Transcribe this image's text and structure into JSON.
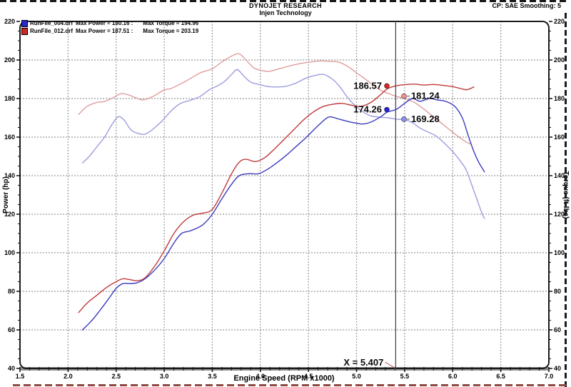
{
  "header": {
    "title": "DYNOJET RESEARCH",
    "subtitle": "Injen Technology",
    "right": "CP: SAE  Smoothing: 5"
  },
  "legend": {
    "items": [
      {
        "file": "RunFile_004.drf",
        "power": "Max Power = 180.16 :",
        "torque": "Max Torque = 194.96",
        "color": "#2828c8"
      },
      {
        "file": "RunFile_012.drf",
        "power": "Max Power = 187.51 :",
        "torque": "Max Torque = 203.19",
        "color": "#c82828"
      }
    ]
  },
  "chart_data": {
    "type": "line",
    "xlabel": "Engine Speed (RPM x1000)",
    "ylabel_left": "Power (hp)",
    "ylabel_right": "Torque (ft-lbs)",
    "xlim": [
      1.5,
      7.0
    ],
    "ylim": [
      40,
      220
    ],
    "x_ticks": [
      "1.5",
      "2.0",
      "2.5",
      "3.0",
      "3.5",
      "4.0",
      "4.5",
      "5.0",
      "5.5",
      "6.0",
      "6.5",
      "7.0"
    ],
    "y_ticks": [
      "220",
      "200",
      "180",
      "160",
      "140",
      "120",
      "100",
      "80",
      "60",
      "40"
    ],
    "x_minor_step": 0.1,
    "y_minor_step": 5,
    "grid": "dashed",
    "cursor": {
      "rpm": 5.407,
      "label": "X = 5.407"
    },
    "series": [
      {
        "name": "RunFile_004 Torque",
        "unit": "ft-lbs",
        "max": 194.96,
        "color": "#9c9ce0",
        "points": [
          [
            2.15,
            146.6
          ],
          [
            2.22,
            150
          ],
          [
            2.3,
            155
          ],
          [
            2.38,
            160
          ],
          [
            2.45,
            166
          ],
          [
            2.52,
            170.5
          ],
          [
            2.58,
            169
          ],
          [
            2.65,
            164
          ],
          [
            2.72,
            162
          ],
          [
            2.8,
            161.5
          ],
          [
            2.88,
            164
          ],
          [
            2.97,
            168
          ],
          [
            3.07,
            173.5
          ],
          [
            3.16,
            177.2
          ],
          [
            3.27,
            179.1
          ],
          [
            3.37,
            181
          ],
          [
            3.47,
            184.6
          ],
          [
            3.55,
            186.5
          ],
          [
            3.63,
            189
          ],
          [
            3.7,
            192.5
          ],
          [
            3.76,
            195
          ],
          [
            3.83,
            191.5
          ],
          [
            3.9,
            188.5
          ],
          [
            3.97,
            187.5
          ],
          [
            4.07,
            186.3
          ],
          [
            4.17,
            186
          ],
          [
            4.27,
            186.4
          ],
          [
            4.37,
            188
          ],
          [
            4.47,
            190.5
          ],
          [
            4.57,
            192
          ],
          [
            4.66,
            192.5
          ],
          [
            4.75,
            190
          ],
          [
            4.82,
            186.5
          ],
          [
            4.9,
            181
          ],
          [
            4.98,
            176.5
          ],
          [
            5.07,
            173
          ],
          [
            5.15,
            171
          ],
          [
            5.25,
            170.3
          ],
          [
            5.33,
            170
          ],
          [
            5.41,
            169.3
          ],
          [
            5.5,
            169
          ],
          [
            5.58,
            167.5
          ],
          [
            5.66,
            164.7
          ],
          [
            5.75,
            162.5
          ],
          [
            5.83,
            160.5
          ],
          [
            5.92,
            156.5
          ],
          [
            6.0,
            152.5
          ],
          [
            6.08,
            147.5
          ],
          [
            6.14,
            143
          ],
          [
            6.2,
            135
          ],
          [
            6.25,
            128
          ],
          [
            6.3,
            121
          ],
          [
            6.33,
            117.8
          ]
        ]
      },
      {
        "name": "RunFile_012 Torque",
        "unit": "ft-lbs",
        "max": 203.19,
        "color": "#e09c9c",
        "points": [
          [
            2.11,
            171.8
          ],
          [
            2.2,
            176
          ],
          [
            2.3,
            178
          ],
          [
            2.38,
            178.5
          ],
          [
            2.45,
            180
          ],
          [
            2.55,
            182.5
          ],
          [
            2.62,
            182
          ],
          [
            2.7,
            180.5
          ],
          [
            2.78,
            179.3
          ],
          [
            2.88,
            181
          ],
          [
            3.0,
            184.5
          ],
          [
            3.07,
            185.2
          ],
          [
            3.22,
            188.9
          ],
          [
            3.37,
            193.2
          ],
          [
            3.5,
            195.5
          ],
          [
            3.6,
            199
          ],
          [
            3.7,
            202
          ],
          [
            3.78,
            203.2
          ],
          [
            3.85,
            200
          ],
          [
            3.93,
            196
          ],
          [
            4.0,
            194.7
          ],
          [
            4.09,
            194.1
          ],
          [
            4.2,
            195.5
          ],
          [
            4.35,
            197.5
          ],
          [
            4.5,
            198.8
          ],
          [
            4.62,
            199.5
          ],
          [
            4.72,
            199.3
          ],
          [
            4.82,
            198.8
          ],
          [
            4.92,
            196.3
          ],
          [
            5.0,
            193.3
          ],
          [
            5.08,
            190.5
          ],
          [
            5.16,
            187.5
          ],
          [
            5.24,
            184.6
          ],
          [
            5.32,
            182.8
          ],
          [
            5.41,
            181.2
          ],
          [
            5.5,
            180
          ],
          [
            5.6,
            178
          ],
          [
            5.7,
            174.5
          ],
          [
            5.8,
            170.5
          ],
          [
            5.9,
            166.5
          ],
          [
            6.0,
            162.5
          ],
          [
            6.08,
            159.5
          ],
          [
            6.14,
            157.5
          ],
          [
            6.19,
            156.3
          ]
        ]
      },
      {
        "name": "RunFile_004 Power",
        "unit": "hp",
        "max": 180.16,
        "color": "#3a3ac0",
        "points": [
          [
            2.15,
            60
          ],
          [
            2.25,
            65
          ],
          [
            2.33,
            70
          ],
          [
            2.42,
            76
          ],
          [
            2.5,
            81.5
          ],
          [
            2.57,
            84
          ],
          [
            2.65,
            84
          ],
          [
            2.72,
            84.5
          ],
          [
            2.8,
            86.5
          ],
          [
            2.9,
            91
          ],
          [
            3.0,
            97
          ],
          [
            3.1,
            105
          ],
          [
            3.18,
            110
          ],
          [
            3.28,
            111.5
          ],
          [
            3.4,
            114.5
          ],
          [
            3.5,
            120
          ],
          [
            3.6,
            128
          ],
          [
            3.7,
            135.5
          ],
          [
            3.78,
            140
          ],
          [
            3.88,
            141
          ],
          [
            3.98,
            141
          ],
          [
            4.08,
            143.5
          ],
          [
            4.18,
            147
          ],
          [
            4.28,
            151
          ],
          [
            4.38,
            155.5
          ],
          [
            4.48,
            160
          ],
          [
            4.58,
            165
          ],
          [
            4.68,
            169.5
          ],
          [
            4.73,
            170.5
          ],
          [
            4.82,
            169.3
          ],
          [
            4.92,
            168
          ],
          [
            5.0,
            167.2
          ],
          [
            5.07,
            166.8
          ],
          [
            5.15,
            167.8
          ],
          [
            5.25,
            170.5
          ],
          [
            5.32,
            173
          ],
          [
            5.41,
            174.3
          ],
          [
            5.5,
            177.5
          ],
          [
            5.58,
            180
          ],
          [
            5.66,
            178.6
          ],
          [
            5.76,
            180
          ],
          [
            5.85,
            179.2
          ],
          [
            5.93,
            178.5
          ],
          [
            6.02,
            176
          ],
          [
            6.1,
            170
          ],
          [
            6.16,
            161
          ],
          [
            6.22,
            152.5
          ],
          [
            6.27,
            147
          ],
          [
            6.33,
            142
          ]
        ]
      },
      {
        "name": "RunFile_012 Power",
        "unit": "hp",
        "max": 187.51,
        "color": "#c03a3a",
        "points": [
          [
            2.11,
            69
          ],
          [
            2.2,
            74
          ],
          [
            2.3,
            78
          ],
          [
            2.4,
            82
          ],
          [
            2.5,
            85
          ],
          [
            2.57,
            86.5
          ],
          [
            2.65,
            86
          ],
          [
            2.72,
            85.5
          ],
          [
            2.8,
            87
          ],
          [
            2.9,
            93
          ],
          [
            3.0,
            101
          ],
          [
            3.1,
            110
          ],
          [
            3.2,
            116
          ],
          [
            3.3,
            119.5
          ],
          [
            3.4,
            120.5
          ],
          [
            3.5,
            122.5
          ],
          [
            3.6,
            131
          ],
          [
            3.7,
            141
          ],
          [
            3.78,
            147
          ],
          [
            3.85,
            148.5
          ],
          [
            3.95,
            147.3
          ],
          [
            4.05,
            149.5
          ],
          [
            4.15,
            154
          ],
          [
            4.25,
            159
          ],
          [
            4.35,
            164
          ],
          [
            4.45,
            169
          ],
          [
            4.55,
            173
          ],
          [
            4.65,
            175.8
          ],
          [
            4.75,
            177
          ],
          [
            4.85,
            177.5
          ],
          [
            4.95,
            176.5
          ],
          [
            5.05,
            176
          ],
          [
            5.15,
            178
          ],
          [
            5.25,
            182
          ],
          [
            5.32,
            185
          ],
          [
            5.41,
            186.6
          ],
          [
            5.5,
            187.2
          ],
          [
            5.6,
            187.5
          ],
          [
            5.7,
            187
          ],
          [
            5.8,
            187.3
          ],
          [
            5.9,
            186.8
          ],
          [
            6.0,
            186.2
          ],
          [
            6.08,
            185.2
          ],
          [
            6.15,
            184.6
          ],
          [
            6.22,
            186
          ]
        ]
      }
    ],
    "annotations": [
      {
        "text": "186.57",
        "value": 186.57,
        "dot_rpm": 5.315,
        "side": "left",
        "color": "#e02020"
      },
      {
        "text": "181.24",
        "value": 181.24,
        "dot_rpm": 5.493,
        "side": "right",
        "color": "#ef8f8f"
      },
      {
        "text": "174.26",
        "value": 174.26,
        "dot_rpm": 5.315,
        "side": "left",
        "color": "#2020e0"
      },
      {
        "text": "169.28",
        "value": 169.28,
        "dot_rpm": 5.493,
        "side": "right",
        "color": "#8f8fef"
      }
    ]
  }
}
